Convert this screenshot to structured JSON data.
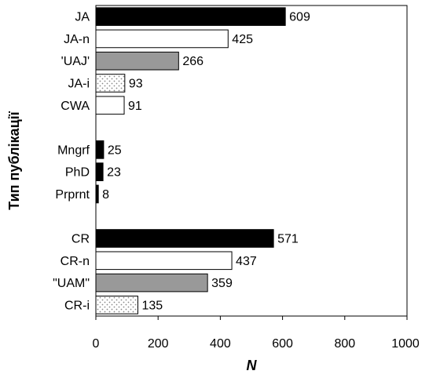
{
  "chart_data": {
    "type": "bar",
    "orientation": "horizontal",
    "categories": [
      "JA",
      "JA-n",
      "'UAJ'",
      "JA-i",
      "CWA",
      "",
      "Mngrf",
      "PhD",
      "Prprnt",
      "",
      "CR",
      "CR-n",
      "\"UAM\"",
      "CR-i"
    ],
    "values": [
      609,
      425,
      266,
      93,
      91,
      null,
      25,
      23,
      8,
      null,
      571,
      437,
      359,
      135
    ],
    "data_labels": [
      "609",
      "425",
      "266",
      "93",
      "91",
      "",
      "25",
      "23",
      "8",
      "",
      "571",
      "437",
      "359",
      "135"
    ],
    "fills": [
      "solid",
      "white",
      "gray",
      "dotted",
      "white",
      "",
      "solid",
      "solid",
      "solid",
      "",
      "solid",
      "white",
      "gray",
      "dotted"
    ],
    "xlabel": "N",
    "ylabel": "Тип публікації",
    "xlim": [
      0,
      1000
    ],
    "xticks": [
      0,
      200,
      400,
      600,
      800,
      1000
    ],
    "xtick_labels": [
      "0",
      "200",
      "400",
      "600",
      "800",
      "1000"
    ],
    "grid": false,
    "colors": {
      "solid": "#000000",
      "white": "#ffffff",
      "gray": "#999999",
      "dotted_dot": "#888888",
      "stroke": "#000000"
    }
  }
}
